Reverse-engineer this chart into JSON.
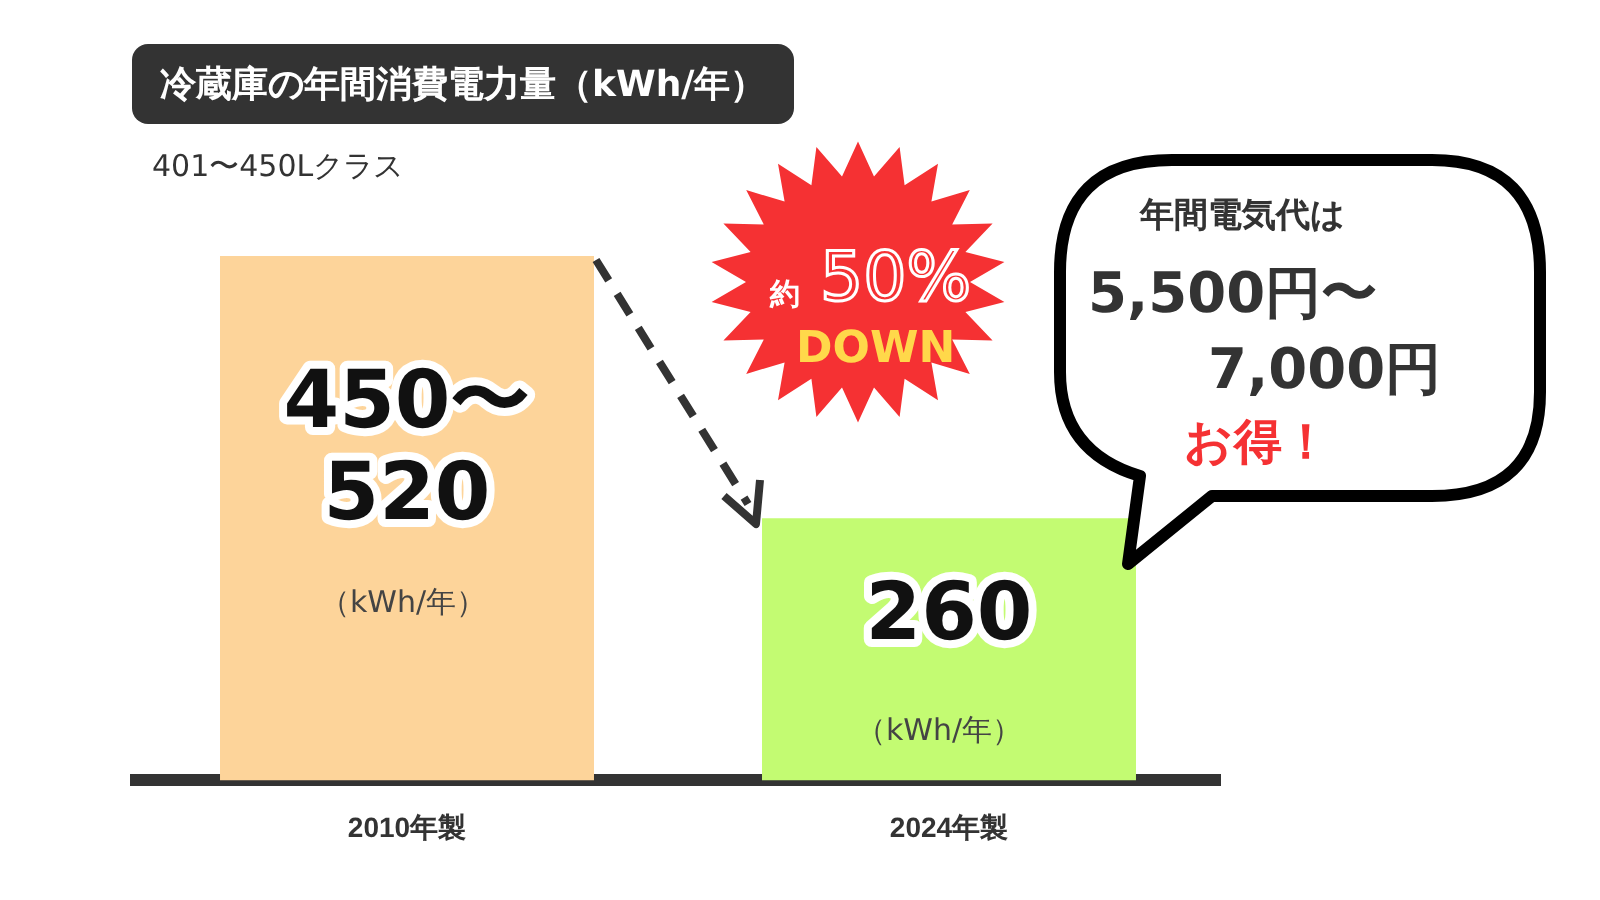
{
  "chart_data": {
    "type": "bar",
    "title": "冷蔵庫の年間消費電力量（kWh/年）",
    "subtitle": "401〜450Lクラス",
    "categories": [
      "2010年製",
      "2024年製"
    ],
    "values": [
      520,
      260
    ],
    "colors": [
      "#fdd49a",
      "#c3fb72"
    ],
    "value_labels": [
      "450〜520",
      "260"
    ],
    "annotations": [
      "（kWh/年）",
      "（kWh/年）",
      "約",
      "50%",
      "DOWN",
      "年間電気代は",
      "5,500円〜",
      "7,000円",
      "お得！"
    ]
  }
}
